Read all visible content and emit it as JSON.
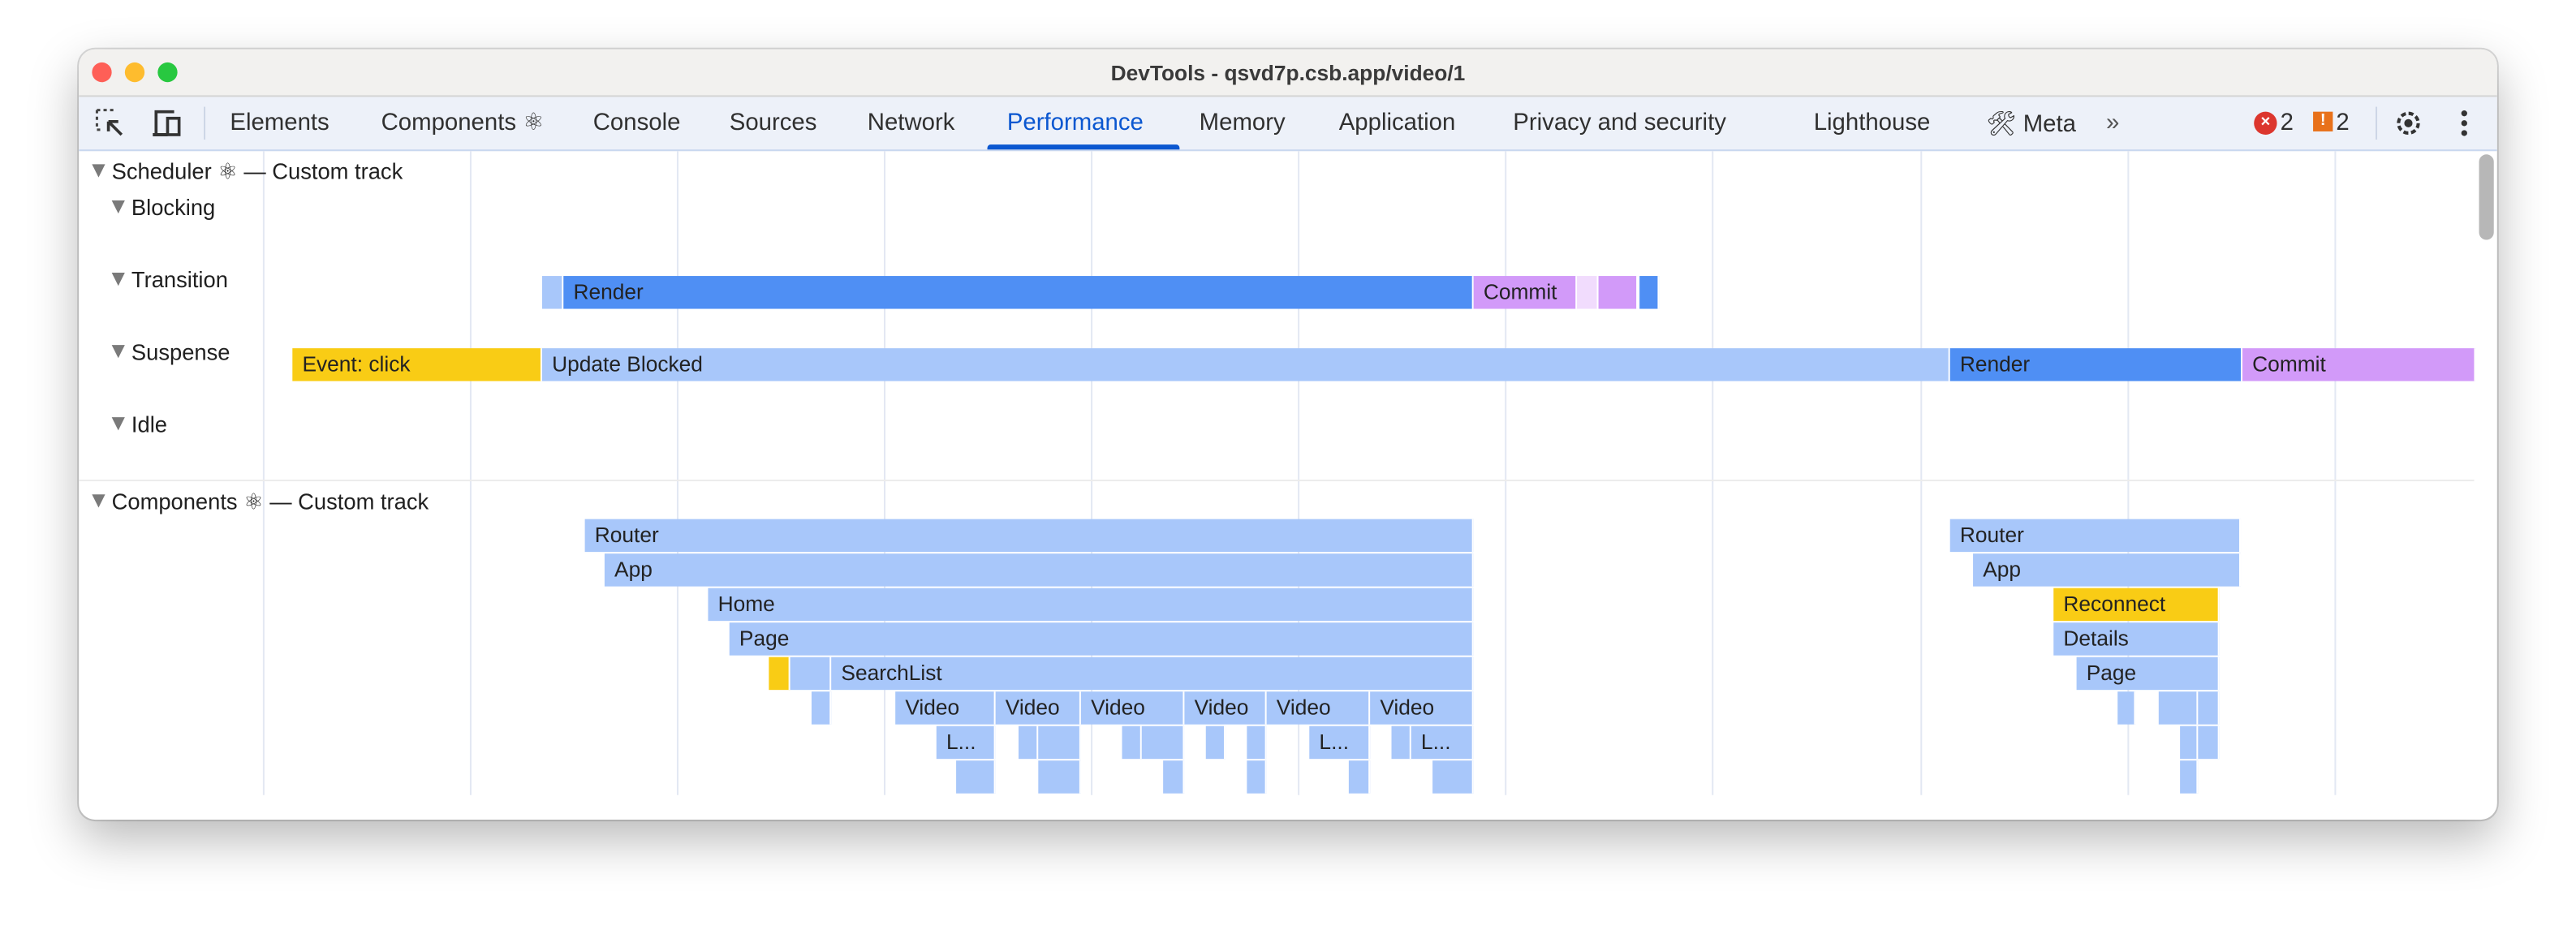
{
  "window": {
    "title": "DevTools - qsvd7p.csb.app/video/1"
  },
  "toolbar": {
    "tabs": [
      {
        "label": "Elements"
      },
      {
        "label": "Components ⚛"
      },
      {
        "label": "Console"
      },
      {
        "label": "Sources"
      },
      {
        "label": "Network"
      },
      {
        "label": "Performance",
        "active": true
      },
      {
        "label": "Memory"
      },
      {
        "label": "Application"
      },
      {
        "label": "Privacy and security"
      },
      {
        "label": "Lighthouse"
      },
      {
        "label": "Meta"
      }
    ],
    "more_icon": "chevron-double-right",
    "errors_count": "2",
    "warnings_count": "2",
    "icons": [
      "inspect-element-icon",
      "device-toolbar-icon",
      "tools-icon",
      "error-icon",
      "warning-icon",
      "gear-icon",
      "kebab-menu-icon"
    ]
  },
  "scheduler": {
    "header": "Scheduler ⚛ — Custom track",
    "lanes": [
      "Blocking",
      "Transition",
      "Suspense",
      "Idle"
    ],
    "blocking_bars": [
      "",
      "Render",
      "Commit",
      "",
      "",
      ""
    ],
    "transition_bars": [
      "Event: click",
      "Update Blocked",
      "Render",
      "Commit"
    ]
  },
  "components": {
    "header": "Components ⚛ — Custom track",
    "bars": [
      "Router",
      "App",
      "Home",
      "Page",
      "",
      "",
      "SearchList",
      "",
      "Video",
      "Video",
      "Video",
      "Video",
      "Video",
      "Video",
      "L...",
      "",
      "",
      "",
      "",
      "",
      "",
      "L...",
      "",
      "L...",
      "",
      "",
      "",
      "",
      "",
      "",
      "Router",
      "App",
      "Reconnect",
      "Details",
      "Page",
      "",
      "",
      "",
      "",
      "",
      ""
    ]
  },
  "colors": {
    "render": "#4f8ff4",
    "light": "#a8c7fa",
    "commit": "#d29af9",
    "pale_commit": "#f1dcfd",
    "event": "#f9cc15",
    "accent": "#0b57d0"
  }
}
